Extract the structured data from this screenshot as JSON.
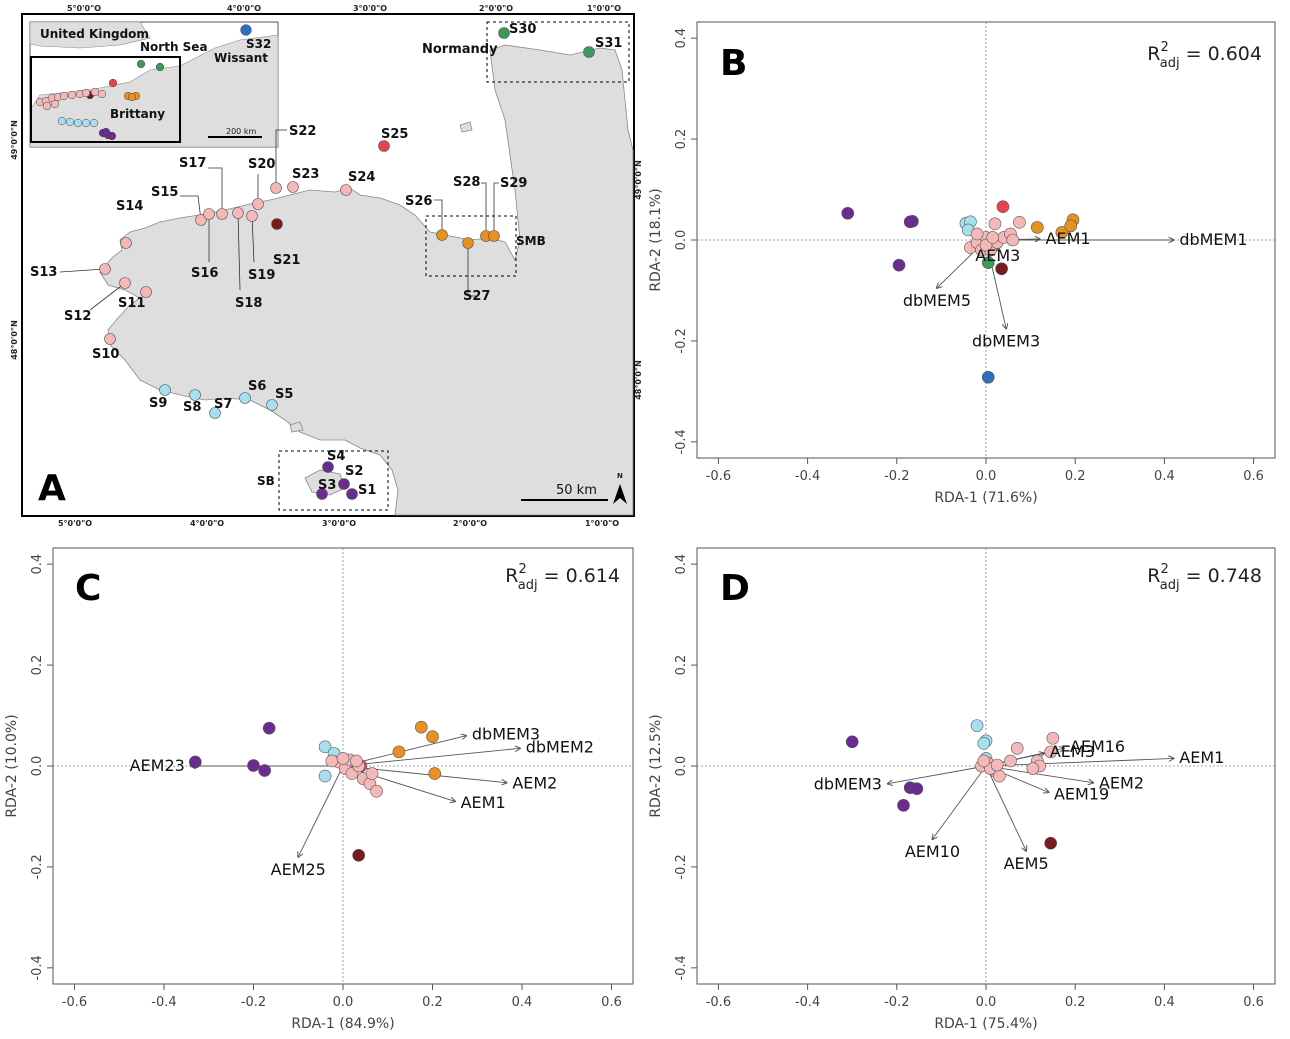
{
  "colors": {
    "pink": "#f4b8b8",
    "light_blue": "#a8dff0",
    "purple": "#6a2c91",
    "red": "#e8434a",
    "dark_red": "#7a1a1a",
    "orange": "#e89020",
    "green": "#3a9a5a",
    "blue": "#2f6fbf",
    "land": "#dedede",
    "sea": "#ffffff"
  },
  "map": {
    "panel_letter": "A",
    "top_coords": [
      "5°0'0\"O",
      "4°0'0\"O",
      "3°0'0\"O",
      "2°0'0\"O",
      "1°0'0\"O"
    ],
    "bottom_coords": [
      "5°0'0\"O",
      "4°0'0\"O",
      "3°0'0\"O",
      "2°0'0\"O",
      "1°0'0\"O"
    ],
    "left_coords": [
      "49°0'0\"N",
      "48°0'0\"N"
    ],
    "right_coords": [
      "49°0'0\"N",
      "48°0'0\"N"
    ],
    "inset_labels": {
      "uk": "United Kingdom",
      "north_sea": "North Sea",
      "wissant": "Wissant",
      "brittany": "Brittany",
      "scale": "200 km",
      "s32": "S32"
    },
    "region_labels": {
      "normandy": "Normandy",
      "smb": "SMB",
      "sb": "SB"
    },
    "scale_label": "50 km",
    "north_label": "N",
    "stations": [
      {
        "id": "S1",
        "label": "S1",
        "color": "purple"
      },
      {
        "id": "S2",
        "label": "S2",
        "color": "purple"
      },
      {
        "id": "S3",
        "label": "S3",
        "color": "purple"
      },
      {
        "id": "S4",
        "label": "S4",
        "color": "purple"
      },
      {
        "id": "S5",
        "label": "S5",
        "color": "light_blue"
      },
      {
        "id": "S6",
        "label": "S6",
        "color": "light_blue"
      },
      {
        "id": "S7",
        "label": "S7",
        "color": "light_blue"
      },
      {
        "id": "S8",
        "label": "S8",
        "color": "light_blue"
      },
      {
        "id": "S9",
        "label": "S9",
        "color": "light_blue"
      },
      {
        "id": "S10",
        "label": "S10",
        "color": "pink"
      },
      {
        "id": "S11",
        "label": "S11",
        "color": "pink"
      },
      {
        "id": "S12",
        "label": "S12",
        "color": "pink"
      },
      {
        "id": "S13",
        "label": "S13",
        "color": "pink"
      },
      {
        "id": "S14",
        "label": "S14",
        "color": "pink"
      },
      {
        "id": "S15",
        "label": "S15",
        "color": "pink"
      },
      {
        "id": "S16",
        "label": "S16",
        "color": "pink"
      },
      {
        "id": "S17",
        "label": "S17",
        "color": "pink"
      },
      {
        "id": "S18",
        "label": "S18",
        "color": "pink"
      },
      {
        "id": "S19",
        "label": "S19",
        "color": "pink"
      },
      {
        "id": "S20",
        "label": "S20",
        "color": "pink"
      },
      {
        "id": "S21",
        "label": "S21",
        "color": "dark_red"
      },
      {
        "id": "S22",
        "label": "S22",
        "color": "pink"
      },
      {
        "id": "S23",
        "label": "S23",
        "color": "pink"
      },
      {
        "id": "S24",
        "label": "S24",
        "color": "pink"
      },
      {
        "id": "S25",
        "label": "S25",
        "color": "red"
      },
      {
        "id": "S26",
        "label": "S26",
        "color": "orange"
      },
      {
        "id": "S27",
        "label": "S27",
        "color": "orange"
      },
      {
        "id": "S28",
        "label": "S28",
        "color": "orange"
      },
      {
        "id": "S29",
        "label": "S29",
        "color": "orange"
      },
      {
        "id": "S30",
        "label": "S30",
        "color": "green"
      },
      {
        "id": "S31",
        "label": "S31",
        "color": "green"
      }
    ]
  },
  "chart_data": [
    {
      "panel": "B",
      "type": "scatter",
      "xlabel": "RDA-1 (71.6%)",
      "ylabel": "RDA-2 (18.1%)",
      "xlim": [
        -0.6,
        0.6
      ],
      "ylim": [
        -0.4,
        0.4
      ],
      "xticks": [
        "-0.6",
        "-0.4",
        "-0.2",
        "0.0",
        "0.2",
        "0.4",
        "0.6"
      ],
      "yticks": [
        "-0.4",
        "-0.2",
        "0.0",
        "0.2",
        "0.4"
      ],
      "r2_base": "R",
      "r2_sup": "2",
      "r2_sub": "adj",
      "r2_value": " = 0.604",
      "points": [
        {
          "x": -0.31,
          "y": 0.053,
          "c": "purple"
        },
        {
          "x": -0.165,
          "y": 0.037,
          "c": "purple"
        },
        {
          "x": -0.17,
          "y": 0.036,
          "c": "purple"
        },
        {
          "x": -0.195,
          "y": -0.05,
          "c": "purple"
        },
        {
          "x": -0.045,
          "y": 0.033,
          "c": "light_blue"
        },
        {
          "x": -0.035,
          "y": 0.036,
          "c": "light_blue"
        },
        {
          "x": -0.04,
          "y": 0.02,
          "c": "light_blue"
        },
        {
          "x": 0.038,
          "y": 0.066,
          "c": "red"
        },
        {
          "x": 0.035,
          "y": -0.057,
          "c": "dark_red"
        },
        {
          "x": 0.115,
          "y": 0.025,
          "c": "orange"
        },
        {
          "x": 0.195,
          "y": 0.04,
          "c": "orange"
        },
        {
          "x": 0.17,
          "y": 0.015,
          "c": "orange"
        },
        {
          "x": 0.19,
          "y": 0.028,
          "c": "orange"
        },
        {
          "x": 0.02,
          "y": -0.01,
          "c": "green"
        },
        {
          "x": 0.005,
          "y": -0.045,
          "c": "green"
        },
        {
          "x": 0.005,
          "y": -0.272,
          "c": "blue"
        },
        {
          "x": -0.035,
          "y": -0.015,
          "c": "pink"
        },
        {
          "x": -0.02,
          "y": -0.005,
          "c": "pink"
        },
        {
          "x": -0.01,
          "y": -0.02,
          "c": "pink"
        },
        {
          "x": 0.0,
          "y": 0.005,
          "c": "pink"
        },
        {
          "x": 0.01,
          "y": -0.02,
          "c": "pink"
        },
        {
          "x": 0.025,
          "y": -0.005,
          "c": "pink"
        },
        {
          "x": 0.04,
          "y": 0.005,
          "c": "pink"
        },
        {
          "x": 0.055,
          "y": 0.012,
          "c": "pink"
        },
        {
          "x": 0.06,
          "y": 0.0,
          "c": "pink"
        },
        {
          "x": 0.075,
          "y": 0.035,
          "c": "pink"
        },
        {
          "x": 0.02,
          "y": 0.032,
          "c": "pink"
        },
        {
          "x": -0.02,
          "y": 0.012,
          "c": "pink"
        },
        {
          "x": 0.0,
          "y": -0.01,
          "c": "pink"
        },
        {
          "x": 0.015,
          "y": 0.005,
          "c": "pink"
        }
      ],
      "arrows": [
        {
          "label": "dbMEM1",
          "x": 0.42,
          "y": 0.0
        },
        {
          "label": "AEM1",
          "x": 0.12,
          "y": 0.002
        },
        {
          "label": "AEM3",
          "x": 0.015,
          "y": -0.008
        },
        {
          "label": "dbMEM5",
          "x": -0.11,
          "y": -0.095
        },
        {
          "label": "dbMEM3",
          "x": 0.045,
          "y": -0.175
        }
      ]
    },
    {
      "panel": "C",
      "type": "scatter",
      "xlabel": "RDA-1 (84.9%)",
      "ylabel": "RDA-2 (10.0%)",
      "xlim": [
        -0.6,
        0.6
      ],
      "ylim": [
        -0.4,
        0.4
      ],
      "xticks": [
        "-0.6",
        "-0.4",
        "-0.2",
        "0.0",
        "0.2",
        "0.4",
        "0.6"
      ],
      "yticks": [
        "-0.4",
        "-0.2",
        "0.0",
        "0.2",
        "0.4"
      ],
      "r2_base": "R",
      "r2_sup": "2",
      "r2_sub": "adj",
      "r2_value": " = 0.614",
      "points": [
        {
          "x": -0.33,
          "y": 0.008,
          "c": "purple"
        },
        {
          "x": -0.2,
          "y": 0.001,
          "c": "purple"
        },
        {
          "x": -0.175,
          "y": -0.009,
          "c": "purple"
        },
        {
          "x": -0.165,
          "y": 0.075,
          "c": "purple"
        },
        {
          "x": -0.04,
          "y": 0.038,
          "c": "light_blue"
        },
        {
          "x": -0.04,
          "y": -0.02,
          "c": "light_blue"
        },
        {
          "x": -0.02,
          "y": 0.025,
          "c": "light_blue"
        },
        {
          "x": 0.04,
          "y": 0.0,
          "c": "red"
        },
        {
          "x": 0.035,
          "y": -0.177,
          "c": "dark_red"
        },
        {
          "x": 0.175,
          "y": 0.077,
          "c": "orange"
        },
        {
          "x": 0.2,
          "y": 0.058,
          "c": "orange"
        },
        {
          "x": 0.125,
          "y": 0.028,
          "c": "orange"
        },
        {
          "x": 0.205,
          "y": -0.015,
          "c": "orange"
        },
        {
          "x": -0.01,
          "y": 0.008,
          "c": "pink"
        },
        {
          "x": 0.005,
          "y": -0.005,
          "c": "pink"
        },
        {
          "x": 0.02,
          "y": -0.015,
          "c": "pink"
        },
        {
          "x": 0.035,
          "y": 0.0,
          "c": "pink"
        },
        {
          "x": 0.045,
          "y": -0.025,
          "c": "pink"
        },
        {
          "x": 0.06,
          "y": -0.035,
          "c": "pink"
        },
        {
          "x": 0.075,
          "y": -0.05,
          "c": "pink"
        },
        {
          "x": 0.065,
          "y": -0.015,
          "c": "pink"
        },
        {
          "x": 0.015,
          "y": 0.012,
          "c": "pink"
        },
        {
          "x": -0.025,
          "y": 0.01,
          "c": "pink"
        },
        {
          "x": 0.0,
          "y": 0.015,
          "c": "pink"
        },
        {
          "x": 0.03,
          "y": 0.01,
          "c": "pink"
        }
      ],
      "arrows": [
        {
          "label": "dbMEM3",
          "x": 0.275,
          "y": 0.06
        },
        {
          "label": "dbMEM2",
          "x": 0.395,
          "y": 0.035
        },
        {
          "label": "AEM2",
          "x": 0.365,
          "y": -0.033
        },
        {
          "label": "AEM1",
          "x": 0.25,
          "y": -0.07
        },
        {
          "label": "AEM23",
          "x": -0.34,
          "y": 0.0
        },
        {
          "label": "AEM25",
          "x": -0.1,
          "y": -0.18
        }
      ]
    },
    {
      "panel": "D",
      "type": "scatter",
      "xlabel": "RDA-1 (75.4%)",
      "ylabel": "RDA-2 (12.5%)",
      "xlim": [
        -0.6,
        0.6
      ],
      "ylim": [
        -0.4,
        0.4
      ],
      "xticks": [
        "-0.6",
        "-0.4",
        "-0.2",
        "0.0",
        "0.2",
        "0.4",
        "0.6"
      ],
      "yticks": [
        "-0.4",
        "-0.2",
        "0.0",
        "0.2",
        "0.4"
      ],
      "r2_base": "R",
      "r2_sup": "2",
      "r2_sub": "adj",
      "r2_value": " = 0.748",
      "points": [
        {
          "x": -0.3,
          "y": 0.048,
          "c": "purple"
        },
        {
          "x": -0.17,
          "y": -0.043,
          "c": "purple"
        },
        {
          "x": -0.155,
          "y": -0.045,
          "c": "purple"
        },
        {
          "x": -0.185,
          "y": -0.078,
          "c": "purple"
        },
        {
          "x": -0.02,
          "y": 0.08,
          "c": "light_blue"
        },
        {
          "x": 0.0,
          "y": 0.05,
          "c": "light_blue"
        },
        {
          "x": -0.005,
          "y": 0.045,
          "c": "light_blue"
        },
        {
          "x": 0.0,
          "y": 0.015,
          "c": "light_blue"
        },
        {
          "x": 0.145,
          "y": -0.153,
          "c": "dark_red"
        },
        {
          "x": 0.15,
          "y": 0.055,
          "c": "pink"
        },
        {
          "x": 0.145,
          "y": 0.028,
          "c": "pink"
        },
        {
          "x": 0.07,
          "y": 0.035,
          "c": "pink"
        },
        {
          "x": 0.115,
          "y": 0.01,
          "c": "pink"
        },
        {
          "x": 0.12,
          "y": 0.0,
          "c": "pink"
        },
        {
          "x": 0.105,
          "y": -0.005,
          "c": "pink"
        },
        {
          "x": 0.055,
          "y": 0.01,
          "c": "pink"
        },
        {
          "x": 0.02,
          "y": -0.01,
          "c": "pink"
        },
        {
          "x": 0.03,
          "y": -0.02,
          "c": "pink"
        },
        {
          "x": -0.01,
          "y": 0.0,
          "c": "pink"
        },
        {
          "x": 0.005,
          "y": 0.005,
          "c": "pink"
        },
        {
          "x": 0.01,
          "y": -0.005,
          "c": "pink"
        },
        {
          "x": -0.005,
          "y": 0.01,
          "c": "pink"
        },
        {
          "x": 0.025,
          "y": 0.002,
          "c": "pink"
        }
      ],
      "arrows": [
        {
          "label": "AEM1",
          "x": 0.42,
          "y": 0.015
        },
        {
          "label": "AEM16",
          "x": 0.175,
          "y": 0.035
        },
        {
          "label": "AEM3",
          "x": 0.13,
          "y": 0.025
        },
        {
          "label": "AEM2",
          "x": 0.24,
          "y": -0.033
        },
        {
          "label": "AEM19",
          "x": 0.14,
          "y": -0.052
        },
        {
          "label": "AEM5",
          "x": 0.09,
          "y": -0.168
        },
        {
          "label": "AEM10",
          "x": -0.12,
          "y": -0.145
        },
        {
          "label": "dbMEM3",
          "x": -0.22,
          "y": -0.035
        }
      ]
    }
  ]
}
